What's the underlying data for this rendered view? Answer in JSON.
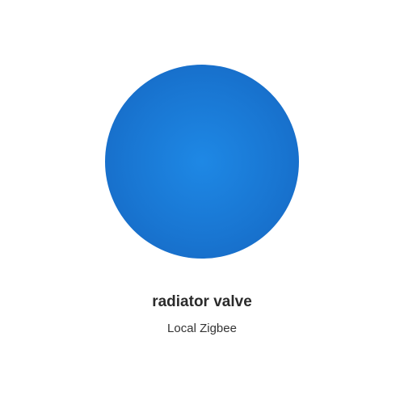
{
  "device": {
    "name": "radiator valve",
    "subtitle": "Local Zigbee"
  },
  "colors": {
    "orb_center": "#1e88e5",
    "orb_edge": "#1565c0",
    "title_text": "#2b2b2b",
    "subtitle_text": "#333333",
    "background": "#ffffff"
  }
}
